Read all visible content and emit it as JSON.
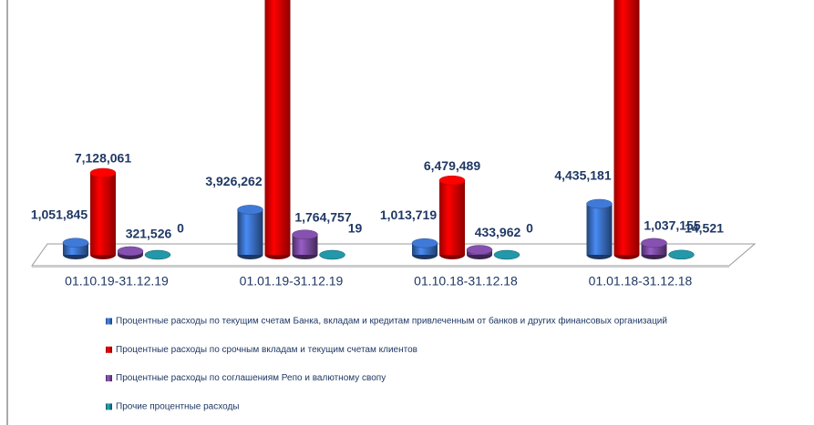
{
  "chart_data": {
    "type": "bar3d",
    "categories": [
      "01.10.19-31.12.19",
      "01.01.19-31.12.19",
      "01.10.18-31.12.18",
      "01.01.18-31.12.18"
    ],
    "series": [
      {
        "name": "Процентные расходы по текущим счетам Банка, вкладам и кредитам привлеченным от банков и других финансовых организаций",
        "color": "#3a6fc4",
        "values": [
          1051845,
          3926262,
          1013719,
          4435181
        ],
        "value_labels": [
          "1,051,845",
          "3,926,262",
          "1,013,719",
          "4,435,181"
        ]
      },
      {
        "name": "Процентные расходы  по срочным вкладам и текущим счетам клиентов",
        "color": "#ff0000",
        "values": [
          7128061,
          30000000,
          6479489,
          32000000
        ],
        "value_labels": [
          "7,128,061",
          null,
          "6,479,489",
          null
        ]
      },
      {
        "name": "Процентные расходы по соглашениям Репо и валютному свопу",
        "color": "#7a4aa0",
        "values": [
          321526,
          1764757,
          433962,
          1037155
        ],
        "value_labels": [
          "321,526",
          "1,764,757",
          "433,962",
          "1,037,155"
        ]
      },
      {
        "name": "Прочие процентные расходы",
        "color": "#1f8a9a",
        "values": [
          0,
          19,
          0,
          14521
        ],
        "value_labels": [
          "0",
          "19",
          "0",
          "14,521"
        ]
      }
    ]
  }
}
